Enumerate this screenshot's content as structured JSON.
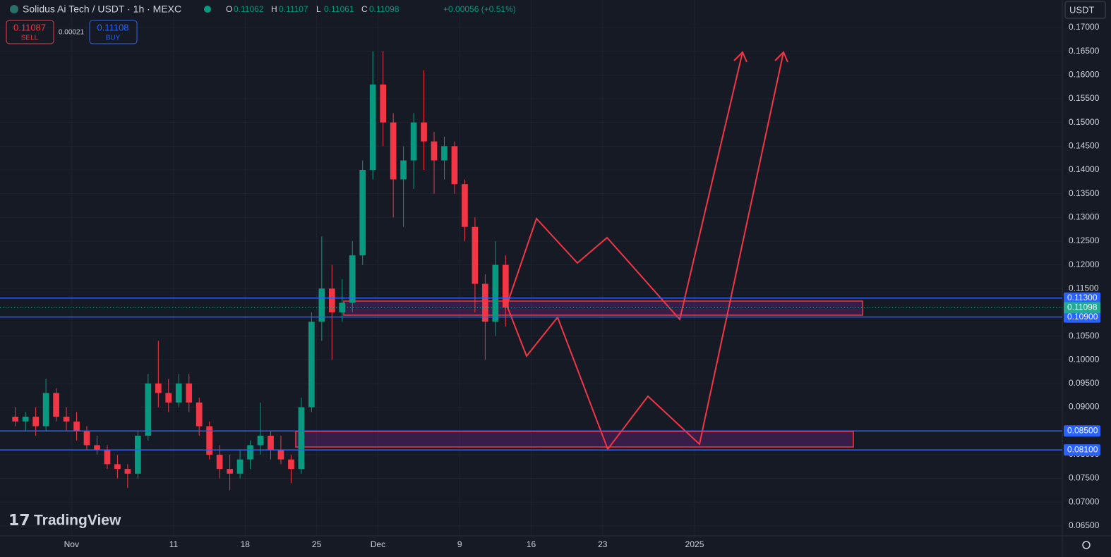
{
  "header": {
    "symbol": "Solidus Ai Tech / USDT · 1h · MEXC",
    "ohlc": [
      {
        "key": "O",
        "value": "0.11062"
      },
      {
        "key": "H",
        "value": "0.11107"
      },
      {
        "key": "L",
        "value": "0.11061"
      },
      {
        "key": "C",
        "value": "0.11098"
      }
    ],
    "change": "+0.00056 (+0.51%)",
    "sell": {
      "price": "0.11087",
      "label": "SELL"
    },
    "spread": "0.00021",
    "buy": {
      "price": "0.11108",
      "label": "BUY"
    },
    "currency": "USDT"
  },
  "watermark": "TradingView",
  "chart_data": {
    "type": "candlestick",
    "x": [
      "2024-10-26",
      "2024-10-27",
      "2024-10-28",
      "2024-10-29",
      "2024-10-30",
      "2024-10-31",
      "2024-11-01",
      "2024-11-02",
      "2024-11-03",
      "2024-11-04",
      "2024-11-05",
      "2024-11-06",
      "2024-11-07",
      "2024-11-08",
      "2024-11-09",
      "2024-11-10",
      "2024-11-11",
      "2024-11-12",
      "2024-11-13",
      "2024-11-14",
      "2024-11-15",
      "2024-11-16",
      "2024-11-17",
      "2024-11-18",
      "2024-11-19",
      "2024-11-20",
      "2024-11-21",
      "2024-11-22",
      "2024-11-23",
      "2024-11-24",
      "2024-11-25",
      "2024-11-26",
      "2024-11-27",
      "2024-11-28",
      "2024-11-29",
      "2024-11-30",
      "2024-12-01",
      "2024-12-02",
      "2024-12-03",
      "2024-12-04",
      "2024-12-05",
      "2024-12-06",
      "2024-12-07",
      "2024-12-08",
      "2024-12-09",
      "2024-12-10",
      "2024-12-11",
      "2024-12-12",
      "2024-12-13"
    ],
    "open": [
      0.088,
      0.087,
      0.088,
      0.086,
      0.093,
      0.088,
      0.087,
      0.085,
      0.082,
      0.081,
      0.078,
      0.077,
      0.076,
      0.084,
      0.095,
      0.093,
      0.091,
      0.095,
      0.091,
      0.086,
      0.08,
      0.077,
      0.076,
      0.079,
      0.082,
      0.084,
      0.081,
      0.079,
      0.077,
      0.09,
      0.108,
      0.115,
      0.11,
      0.112,
      0.122,
      0.14,
      0.158,
      0.15,
      0.138,
      0.142,
      0.15,
      0.146,
      0.142,
      0.145,
      0.137,
      0.128,
      0.116,
      0.108,
      0.12
    ],
    "high": [
      0.09,
      0.089,
      0.09,
      0.096,
      0.094,
      0.09,
      0.089,
      0.086,
      0.084,
      0.082,
      0.08,
      0.078,
      0.085,
      0.097,
      0.104,
      0.096,
      0.097,
      0.097,
      0.092,
      0.087,
      0.082,
      0.08,
      0.081,
      0.083,
      0.091,
      0.085,
      0.084,
      0.08,
      0.092,
      0.11,
      0.126,
      0.12,
      0.117,
      0.125,
      0.142,
      0.165,
      0.165,
      0.152,
      0.145,
      0.152,
      0.161,
      0.148,
      0.147,
      0.146,
      0.138,
      0.13,
      0.118,
      0.125,
      0.122
    ],
    "low": [
      0.086,
      0.085,
      0.084,
      0.085,
      0.087,
      0.085,
      0.083,
      0.081,
      0.08,
      0.077,
      0.075,
      0.073,
      0.075,
      0.083,
      0.09,
      0.089,
      0.09,
      0.089,
      0.084,
      0.079,
      0.075,
      0.0725,
      0.075,
      0.077,
      0.08,
      0.079,
      0.078,
      0.074,
      0.076,
      0.089,
      0.104,
      0.1,
      0.108,
      0.11,
      0.12,
      0.138,
      0.145,
      0.13,
      0.128,
      0.136,
      0.14,
      0.135,
      0.138,
      0.135,
      0.125,
      0.11,
      0.1,
      0.105,
      0.107
    ],
    "close": [
      0.087,
      0.088,
      0.086,
      0.093,
      0.088,
      0.087,
      0.085,
      0.082,
      0.081,
      0.078,
      0.077,
      0.076,
      0.084,
      0.095,
      0.093,
      0.091,
      0.095,
      0.091,
      0.086,
      0.08,
      0.077,
      0.076,
      0.079,
      0.082,
      0.084,
      0.081,
      0.079,
      0.077,
      0.09,
      0.108,
      0.115,
      0.11,
      0.112,
      0.122,
      0.14,
      0.158,
      0.15,
      0.138,
      0.142,
      0.15,
      0.146,
      0.142,
      0.145,
      0.137,
      0.128,
      0.116,
      0.108,
      0.12,
      0.11098
    ],
    "up_color": "#089981",
    "down_color": "#f23645",
    "xlim": [
      "2024-10-25",
      "2025-02-06"
    ],
    "xticks": [
      {
        "value": "2024-11-01",
        "label": "Nov"
      },
      {
        "value": "2024-11-11",
        "label": "11"
      },
      {
        "value": "2024-11-18",
        "label": "18"
      },
      {
        "value": "2024-11-25",
        "label": "25"
      },
      {
        "value": "2024-12-01",
        "label": "Dec"
      },
      {
        "value": "2024-12-09",
        "label": "9"
      },
      {
        "value": "2024-12-16",
        "label": "16"
      },
      {
        "value": "2024-12-23",
        "label": "23"
      },
      {
        "value": "2025-01-01",
        "label": "2025"
      }
    ],
    "ylim": [
      0.0629,
      0.1758
    ],
    "yticks": [
      {
        "value": 0.065,
        "label": "0.06500"
      },
      {
        "value": 0.07,
        "label": "0.07000"
      },
      {
        "value": 0.075,
        "label": "0.07500"
      },
      {
        "value": 0.08,
        "label": "0.08000"
      },
      {
        "value": 0.09,
        "label": "0.09000"
      },
      {
        "value": 0.095,
        "label": "0.09500"
      },
      {
        "value": 0.1,
        "label": "0.10000"
      },
      {
        "value": 0.105,
        "label": "0.10500"
      },
      {
        "value": 0.115,
        "label": "0.11500"
      },
      {
        "value": 0.12,
        "label": "0.12000"
      },
      {
        "value": 0.125,
        "label": "0.12500"
      },
      {
        "value": 0.13,
        "label": "0.13000"
      },
      {
        "value": 0.135,
        "label": "0.13500"
      },
      {
        "value": 0.14,
        "label": "0.14000"
      },
      {
        "value": 0.145,
        "label": "0.14500"
      },
      {
        "value": 0.15,
        "label": "0.15000"
      },
      {
        "value": 0.155,
        "label": "0.15500"
      },
      {
        "value": 0.16,
        "label": "0.16000"
      },
      {
        "value": 0.165,
        "label": "0.16500"
      },
      {
        "value": 0.17,
        "label": "0.17000"
      }
    ],
    "grid": true,
    "price_lines": [
      {
        "value": 0.113,
        "label": "0.11300",
        "color": "#2962ff"
      },
      {
        "value": 0.109,
        "label": "0.10900",
        "color": "#2962ff"
      },
      {
        "value": 0.085,
        "label": "0.08500",
        "color": "#2962ff"
      },
      {
        "value": 0.081,
        "label": "0.08100",
        "color": "#2962ff"
      }
    ],
    "last_price": {
      "value": 0.11098,
      "label": "0.11098",
      "color": "#22ab94"
    }
  }
}
